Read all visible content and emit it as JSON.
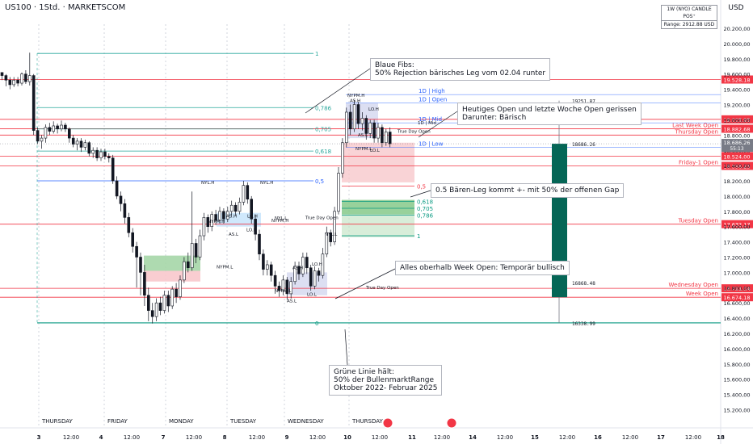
{
  "chart_data": {
    "type": "candlestick",
    "title": "US100 · 1Std. · MARKETSCOM",
    "currency": "USD",
    "info_box": {
      "label": "1W (NYO) CANDLE POS⁺",
      "range": "Range: 2912.88 USD"
    },
    "ylim": [
      15100,
      20500
    ],
    "yticks": [
      "20.200,00",
      "20.000,00",
      "19.800,00",
      "19.600,00",
      "19.400,00",
      "19.200,00",
      "19.000,00",
      "18.800,00",
      "18.600,00",
      "18.400,00",
      "18.200,00",
      "18.000,00",
      "17.800,00",
      "17.600,00",
      "17.400,00",
      "17.200,00",
      "17.000,00",
      "16.800,00",
      "16.600,00",
      "16.400,00",
      "16.200,00",
      "16.000,00",
      "15.800,00",
      "15.600,00",
      "15.400,00",
      "15.200,00"
    ],
    "ytick_values": [
      20200,
      20000,
      19800,
      19600,
      19400,
      19200,
      19000,
      18800,
      18600,
      18400,
      18200,
      18000,
      17800,
      17600,
      17400,
      17200,
      17000,
      16800,
      16600,
      16400,
      16200,
      16000,
      15800,
      15600,
      15400,
      15200
    ],
    "xticks": [
      {
        "label": "3",
        "bold": true
      },
      {
        "label": "12:00"
      },
      {
        "label": "4",
        "bold": true
      },
      {
        "label": "12:00"
      },
      {
        "label": "7",
        "bold": true
      },
      {
        "label": "12:00"
      },
      {
        "label": "8",
        "bold": true
      },
      {
        "label": "12:00"
      },
      {
        "label": "9",
        "bold": true
      },
      {
        "label": "12:00"
      },
      {
        "label": "10",
        "bold": true
      },
      {
        "label": "12:00"
      },
      {
        "label": "11",
        "bold": true
      },
      {
        "label": "12:00"
      },
      {
        "label": "14",
        "bold": true
      },
      {
        "label": "12:00"
      },
      {
        "label": "15",
        "bold": true
      },
      {
        "label": "12:00"
      },
      {
        "label": "16",
        "bold": true
      },
      {
        "label": "12:00"
      },
      {
        "label": "17",
        "bold": true
      },
      {
        "label": "12:00"
      },
      {
        "label": "18",
        "bold": true
      }
    ],
    "day_labels": [
      "THURSDAY",
      "FRIDAY",
      "MONDAY",
      "TUESDAY",
      "WEDNESDAY",
      "THURSDAY"
    ],
    "levels": [
      {
        "label": "Last Week Open",
        "value": 18883,
        "price_label": "18.882,68",
        "color": "#f23645"
      },
      {
        "label": "Thursday Open",
        "value": 18800,
        "price_label": "",
        "color": "#f23645"
      },
      {
        "label": "Friday-1 Open",
        "value": 18396,
        "price_label": "18.396,25",
        "color": "#f23645"
      },
      {
        "label": "Tuesday  Open",
        "value": 17632,
        "price_label": "17.632,17",
        "color": "#f23645"
      },
      {
        "label": "Wednesday Open",
        "value": 16791,
        "price_label": "16.791,04",
        "color": "#f23645"
      },
      {
        "label": "Week Open",
        "value": 16674,
        "price_label": "16.674,18",
        "color": "#f23645"
      },
      {
        "label": "",
        "value": 19528,
        "price_label": "19.528,18",
        "color": "#f23645"
      },
      {
        "label": "",
        "value": 19006,
        "price_label": "19.005,95",
        "color": "#f23645"
      },
      {
        "label": "",
        "value": 18524,
        "price_label": "18.524,00",
        "color": "#f23645"
      }
    ],
    "current_price": {
      "value": 18686,
      "label": "18.686,26",
      "countdown": "55:13"
    },
    "fib_levels": [
      {
        "ratio": "1",
        "value": 19870
      },
      {
        "ratio": "0,786",
        "value": 19160
      },
      {
        "ratio": "0,705",
        "value": 18880
      },
      {
        "ratio": "0,618",
        "value": 18590
      },
      {
        "ratio": "0,5",
        "value": 18200
      },
      {
        "ratio": "0",
        "value": 16338
      }
    ],
    "small_fibs": [
      {
        "ratio": "0,5",
        "value": 18130,
        "color": "#f23645"
      },
      {
        "ratio": "0,618",
        "value": 17930,
        "color": "#089981"
      },
      {
        "ratio": "0,705",
        "value": 17840,
        "color": "#089981"
      },
      {
        "ratio": "0,786",
        "value": 17750,
        "color": "#089981"
      },
      {
        "ratio": "1",
        "value": 17480,
        "color": "#089981"
      }
    ],
    "daily_levels": [
      {
        "label": "1D | High",
        "value": 19330
      },
      {
        "label": "1D | Open",
        "value": 19220
      },
      {
        "label": "1D | Mid",
        "value": 18960
      },
      {
        "label": "1D | Low",
        "value": 18640
      }
    ],
    "weekly_candle": {
      "open": 16674,
      "close": 18686,
      "high": 19252,
      "low": 16339
    },
    "price_annotations": [
      "19251.87",
      "18686.26",
      "16868.48",
      "16338.99"
    ],
    "structure_labels": [
      "NYPM.H",
      "AS.H",
      "LO.H",
      "AS.L",
      "LO.L",
      "NYPM.L",
      "NYL.H",
      "NYL.L",
      "True Day Open",
      "1D | Mid"
    ],
    "series": [
      {
        "name": "US100",
        "candles": [
          [
            19620,
            19580,
            19620,
            19520
          ],
          [
            19580,
            19520,
            19600,
            19440
          ],
          [
            19520,
            19460,
            19560,
            19400
          ],
          [
            19460,
            19520,
            19560,
            19430
          ],
          [
            19520,
            19480,
            19560,
            19440
          ],
          [
            19480,
            19600,
            19620,
            19450
          ],
          [
            19600,
            19500,
            19650,
            19470
          ],
          [
            19500,
            19580,
            19880,
            19450
          ],
          [
            19580,
            18860,
            19600,
            18800
          ],
          [
            18860,
            18720,
            18900,
            18680
          ],
          [
            18720,
            18760,
            18800,
            18620
          ],
          [
            18760,
            18900,
            18940,
            18700
          ],
          [
            18900,
            18850,
            18960,
            18800
          ],
          [
            18850,
            18920,
            18980,
            18820
          ],
          [
            18920,
            18880,
            18950,
            18820
          ],
          [
            18880,
            18930,
            18990,
            18850
          ],
          [
            18930,
            18880,
            18960,
            18840
          ],
          [
            18880,
            18760,
            18900,
            18700
          ],
          [
            18760,
            18680,
            18800,
            18640
          ],
          [
            18680,
            18720,
            18760,
            18600
          ],
          [
            18720,
            18640,
            18760,
            18580
          ],
          [
            18640,
            18700,
            18740,
            18600
          ],
          [
            18700,
            18560,
            18720,
            18520
          ],
          [
            18560,
            18600,
            18640,
            18500
          ],
          [
            18600,
            18500,
            18640,
            18460
          ],
          [
            18500,
            18580,
            18620,
            18460
          ],
          [
            18580,
            18520,
            18620,
            18480
          ],
          [
            18520,
            18500,
            18560,
            18440
          ],
          [
            18500,
            18200,
            18540,
            18160
          ],
          [
            18200,
            18000,
            18260,
            17960
          ],
          [
            18000,
            17900,
            18060,
            17800
          ],
          [
            17900,
            17720,
            17960,
            17640
          ],
          [
            17720,
            17520,
            17780,
            17460
          ],
          [
            17520,
            17340,
            17580,
            17260
          ],
          [
            17340,
            17200,
            17400,
            16800
          ],
          [
            17200,
            17000,
            17260,
            16700
          ],
          [
            17000,
            16700,
            17100,
            16560
          ],
          [
            16700,
            16500,
            16800,
            16360
          ],
          [
            16500,
            16420,
            16600,
            16330
          ],
          [
            16420,
            16600,
            16660,
            16360
          ],
          [
            16600,
            16500,
            16680,
            16440
          ],
          [
            16500,
            16700,
            16760,
            16460
          ],
          [
            16700,
            16560,
            16760,
            16480
          ],
          [
            16560,
            16780,
            16820,
            16520
          ],
          [
            16780,
            16680,
            16860,
            16600
          ],
          [
            16680,
            16900,
            16960,
            16640
          ],
          [
            16900,
            17140,
            17200,
            16860
          ],
          [
            17140,
            17060,
            17260,
            17000
          ],
          [
            17060,
            17380,
            18060,
            17020
          ],
          [
            17380,
            17200,
            17440,
            17120
          ],
          [
            17200,
            17480,
            17560,
            17160
          ],
          [
            17480,
            17720,
            17780,
            17420
          ],
          [
            17720,
            17600,
            17760,
            17520
          ],
          [
            17600,
            17760,
            17800,
            17540
          ],
          [
            17760,
            17680,
            17820,
            17620
          ],
          [
            17680,
            17800,
            17860,
            17640
          ],
          [
            17800,
            17700,
            17840,
            17640
          ],
          [
            17700,
            17800,
            17860,
            17660
          ],
          [
            17800,
            17880,
            17940,
            17740
          ],
          [
            17880,
            17800,
            17920,
            17740
          ],
          [
            17800,
            17920,
            17980,
            17760
          ],
          [
            17920,
            18140,
            18200,
            17880
          ],
          [
            18140,
            17960,
            18180,
            17900
          ],
          [
            17960,
            17700,
            18000,
            17640
          ],
          [
            17700,
            17500,
            17760,
            17420
          ],
          [
            17500,
            17240,
            17560,
            17160
          ],
          [
            17240,
            17040,
            17300,
            16960
          ],
          [
            17040,
            17100,
            17160,
            16960
          ],
          [
            17100,
            16960,
            17140,
            16880
          ],
          [
            16960,
            16820,
            17020,
            16720
          ],
          [
            16820,
            16760,
            16880,
            16680
          ],
          [
            16760,
            16900,
            16960,
            16700
          ],
          [
            16900,
            16720,
            16940,
            16640
          ],
          [
            16720,
            16880,
            16940,
            16660
          ],
          [
            16880,
            17080,
            17140,
            16840
          ],
          [
            17080,
            16980,
            17140,
            16900
          ],
          [
            16980,
            17200,
            17260,
            16940
          ],
          [
            17200,
            17060,
            17260,
            16980
          ],
          [
            17060,
            16820,
            17100,
            16760
          ],
          [
            16820,
            17020,
            17080,
            16780
          ],
          [
            17020,
            16960,
            17060,
            16880
          ],
          [
            16960,
            17240,
            17320,
            16920
          ],
          [
            17240,
            17520,
            17600,
            17200
          ],
          [
            17520,
            17400,
            17560,
            17340
          ],
          [
            17400,
            17800,
            17860,
            17360
          ],
          [
            17800,
            18300,
            18380,
            17760
          ],
          [
            18300,
            18700,
            18760,
            18240
          ],
          [
            18700,
            19100,
            19160,
            18640
          ],
          [
            19100,
            18880,
            19200,
            18800
          ],
          [
            18880,
            19200,
            19260,
            18840
          ],
          [
            19200,
            18950,
            19240,
            18880
          ],
          [
            18950,
            19020,
            19100,
            18860
          ],
          [
            19020,
            18820,
            19060,
            18740
          ],
          [
            18820,
            18960,
            19000,
            18760
          ],
          [
            18960,
            18760,
            19000,
            18700
          ],
          [
            18760,
            18900,
            18960,
            18700
          ],
          [
            18900,
            18700,
            18940,
            18640
          ],
          [
            18700,
            18840,
            18880,
            18660
          ],
          [
            18840,
            18686,
            18900,
            18640
          ]
        ]
      }
    ]
  },
  "notes": {
    "blue_fibs": [
      "Blaue Fibs:",
      "50% Rejection bärisches Leg vom 02.04 runter"
    ],
    "today_open": [
      "Heutiges Open und letzte Woche Open gerissen",
      "Darunter: Bärisch"
    ],
    "bear_leg": [
      "0.5 Bären-Leg kommt +- mit 50% der offenen Gap"
    ],
    "above_week": [
      "Alles oberhalb Week Open: Temporär bullisch"
    ],
    "green_line": [
      "Grüne Linie hält:",
      "50% der BullenmarktRange",
      "Oktober 2022- Februar 2025"
    ]
  }
}
